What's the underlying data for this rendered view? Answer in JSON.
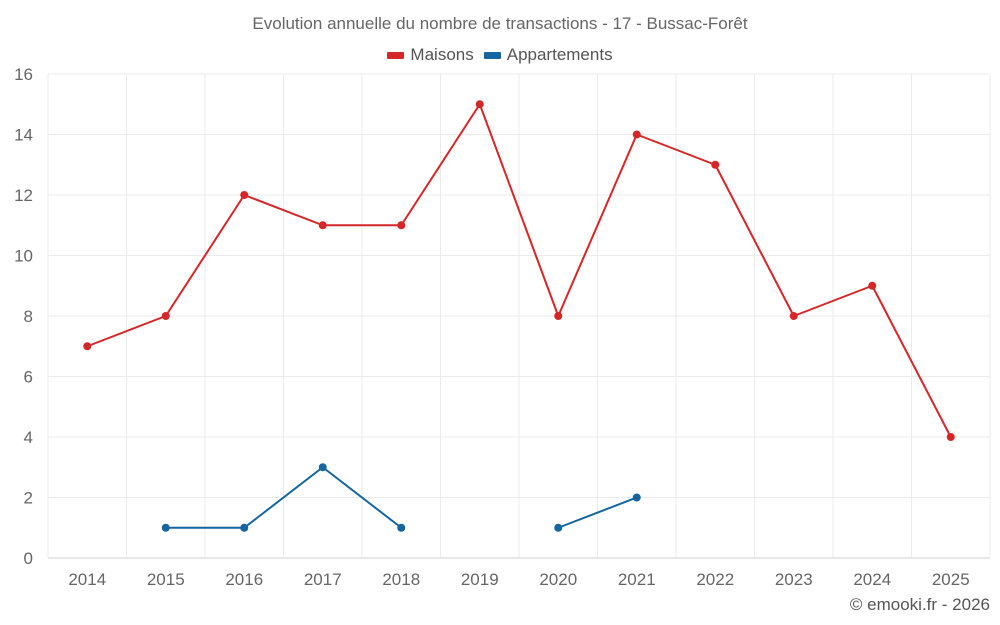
{
  "chart_data": {
    "type": "line",
    "title": "Evolution annuelle du nombre de transactions - 17 - Bussac-Forêt",
    "categories": [
      "2014",
      "2015",
      "2016",
      "2017",
      "2018",
      "2019",
      "2020",
      "2021",
      "2022",
      "2023",
      "2024",
      "2025"
    ],
    "series": [
      {
        "name": "Maisons",
        "color": "#d62728",
        "values": [
          7,
          8,
          12,
          11,
          11,
          15,
          8,
          14,
          13,
          8,
          9,
          4
        ]
      },
      {
        "name": "Appartements",
        "color": "#1565a0",
        "values": [
          null,
          1,
          1,
          3,
          1,
          null,
          1,
          2,
          null,
          null,
          null,
          null
        ]
      }
    ],
    "yticks": [
      "0",
      "2",
      "4",
      "6",
      "8",
      "10",
      "12",
      "14",
      "16"
    ],
    "ylim": [
      0,
      16
    ],
    "xlabel": "",
    "ylabel": "",
    "legend_position": "top-center",
    "grid": true
  },
  "credit": "© emooki.fr - 2026"
}
